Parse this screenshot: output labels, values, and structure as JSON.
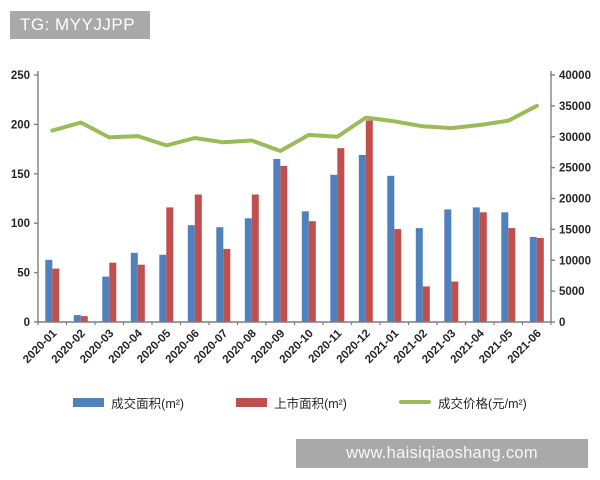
{
  "header": {
    "badge_label": "TG: MYYJJPP"
  },
  "watermark": {
    "url_label": "www.haisiqiaoshang.com"
  },
  "chart_data": {
    "type": "combo-bar-line",
    "title": "",
    "categories": [
      "2020-01",
      "2020-02",
      "2020-03",
      "2020-04",
      "2020-05",
      "2020-06",
      "2020-07",
      "2020-08",
      "2020-09",
      "2020-10",
      "2020-11",
      "2020-12",
      "2021-01",
      "2021-02",
      "2021-03",
      "2021-04",
      "2021-05",
      "2021-06"
    ],
    "series": [
      {
        "name": "成交面积(m²)",
        "type": "bar",
        "axis": "left",
        "color": "#4f81bd",
        "values": [
          63,
          7,
          46,
          70,
          68,
          98,
          96,
          105,
          165,
          112,
          149,
          169,
          148,
          95,
          114,
          116,
          111,
          86
        ]
      },
      {
        "name": "上市面积(m²)",
        "type": "bar",
        "axis": "left",
        "color": "#c0504d",
        "values": [
          54,
          6,
          60,
          58,
          116,
          129,
          74,
          129,
          158,
          102,
          176,
          204,
          94,
          36,
          41,
          111,
          95,
          85
        ]
      },
      {
        "name": "成交价格(元/m²)",
        "type": "line",
        "axis": "right",
        "color": "#9bbb59",
        "values": [
          31000,
          32300,
          29900,
          30100,
          28600,
          29800,
          29100,
          29400,
          27700,
          30300,
          30000,
          33100,
          32500,
          31700,
          31400,
          31900,
          32600,
          35000
        ]
      }
    ],
    "left_axis": {
      "min": 0,
      "max": 250,
      "ticks": [
        0,
        50,
        100,
        150,
        200,
        250
      ]
    },
    "right_axis": {
      "min": 0,
      "max": 40000,
      "ticks": [
        0,
        5000,
        10000,
        15000,
        20000,
        25000,
        30000,
        35000,
        40000
      ]
    },
    "grid": false,
    "legend_position": "bottom",
    "axis_color": "#7f7f7f",
    "tick_label_color": "#262626"
  }
}
